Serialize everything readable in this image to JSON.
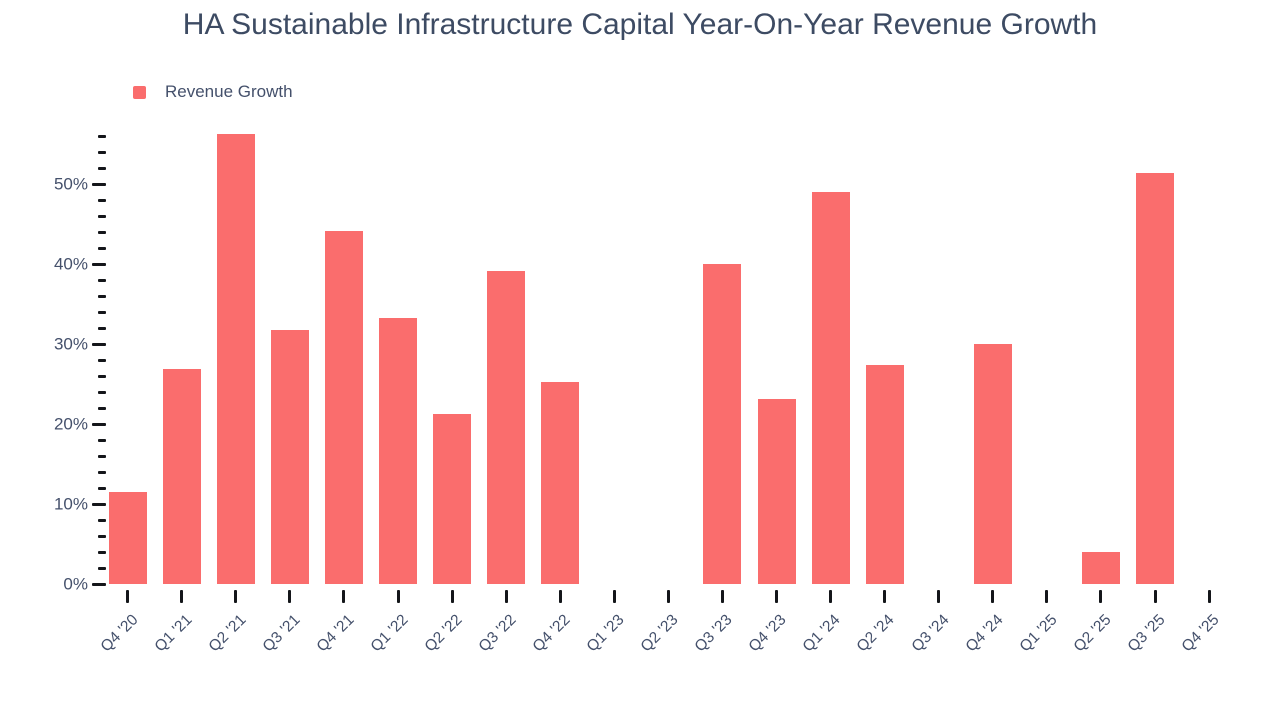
{
  "chart_data": {
    "type": "bar",
    "title": "HA Sustainable Infrastructure Capital Year-On-Year Revenue Growth",
    "legend": [
      {
        "label": "Revenue Growth",
        "color": "#fa6d6d"
      }
    ],
    "legend_position": "top-left",
    "grid": "off",
    "unit": "%",
    "categories": [
      "Q4 '20",
      "Q1 '21",
      "Q2 '21",
      "Q3 '21",
      "Q4 '21",
      "Q1 '22",
      "Q2 '22",
      "Q3 '22",
      "Q4 '22",
      "Q1 '23",
      "Q2 '23",
      "Q3 '23",
      "Q4 '23",
      "Q1 '24",
      "Q2 '24",
      "Q3 '24",
      "Q4 '24",
      "Q1 '25",
      "Q2 '25",
      "Q3 '25",
      "Q4 '25"
    ],
    "series": [
      {
        "name": "Revenue Growth",
        "values": [
          11.5,
          26.9,
          56.3,
          31.8,
          44.1,
          33.2,
          21.2,
          39.1,
          25.2,
          null,
          null,
          40.0,
          23.1,
          49.0,
          27.4,
          null,
          30.0,
          null,
          4.0,
          51.4,
          null
        ]
      }
    ],
    "xlabel": "",
    "ylabel": "",
    "ylim": [
      0,
      56
    ],
    "y_major_step": 10,
    "y_minor_step": 2,
    "y_tick_labels": [
      "0%",
      "10%",
      "20%",
      "30%",
      "40%",
      "50%"
    ],
    "colors": {
      "bar": "#fa6d6d",
      "text": "#44506b",
      "title": "#3d4b63",
      "tick": "#14161a",
      "background": "#ffffff"
    }
  }
}
